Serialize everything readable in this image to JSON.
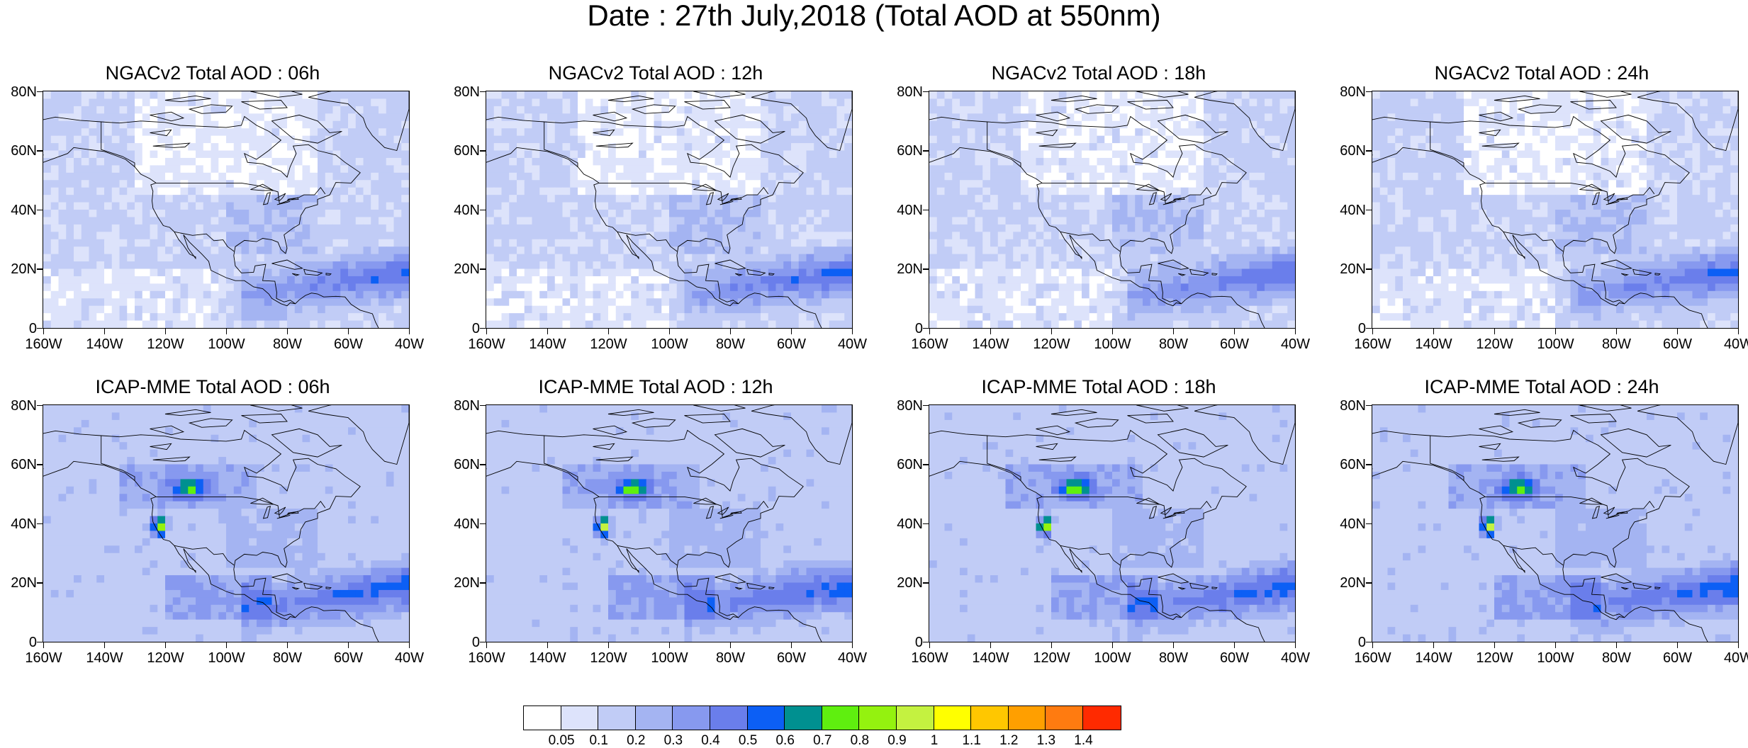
{
  "title": "Date : 27th July,2018 (Total AOD at 550nm)",
  "panels": [
    {
      "title": "NGACv2 Total AOD : 06h",
      "model": "NGACv2",
      "forecast_hour": "06h"
    },
    {
      "title": "NGACv2 Total AOD : 12h",
      "model": "NGACv2",
      "forecast_hour": "12h"
    },
    {
      "title": "NGACv2 Total AOD : 18h",
      "model": "NGACv2",
      "forecast_hour": "18h"
    },
    {
      "title": "NGACv2 Total AOD : 24h",
      "model": "NGACv2",
      "forecast_hour": "24h"
    },
    {
      "title": "ICAP-MME Total AOD : 06h",
      "model": "ICAP-MME",
      "forecast_hour": "06h"
    },
    {
      "title": "ICAP-MME Total AOD : 12h",
      "model": "ICAP-MME",
      "forecast_hour": "12h"
    },
    {
      "title": "ICAP-MME Total AOD : 18h",
      "model": "ICAP-MME",
      "forecast_hour": "18h"
    },
    {
      "title": "ICAP-MME Total AOD : 24h",
      "model": "ICAP-MME",
      "forecast_hour": "24h"
    }
  ],
  "axes": {
    "lat_labels": [
      "80N",
      "60N",
      "40N",
      "20N",
      "0"
    ],
    "lat_values": [
      80,
      60,
      40,
      20,
      0
    ],
    "lon_labels": [
      "160W",
      "140W",
      "120W",
      "100W",
      "80W",
      "60W",
      "40W"
    ],
    "lon_values": [
      -160,
      -140,
      -120,
      -100,
      -80,
      -60,
      -40
    ]
  },
  "colorbar": {
    "labels": [
      "0.05",
      "0.1",
      "0.2",
      "0.3",
      "0.4",
      "0.5",
      "0.6",
      "0.7",
      "0.8",
      "0.9",
      "1",
      "1.1",
      "1.2",
      "1.3",
      "1.4"
    ],
    "colors": [
      "#ffffff",
      "#dde3fb",
      "#c1ccf6",
      "#a4b4f2",
      "#8799ef",
      "#6a7eeb",
      "#0c5ff5",
      "#009090",
      "#5fef0f",
      "#94f20f",
      "#c4f240",
      "#ffff00",
      "#ffc700",
      "#ff9f00",
      "#ff7b10",
      "#ff2a00"
    ]
  }
}
